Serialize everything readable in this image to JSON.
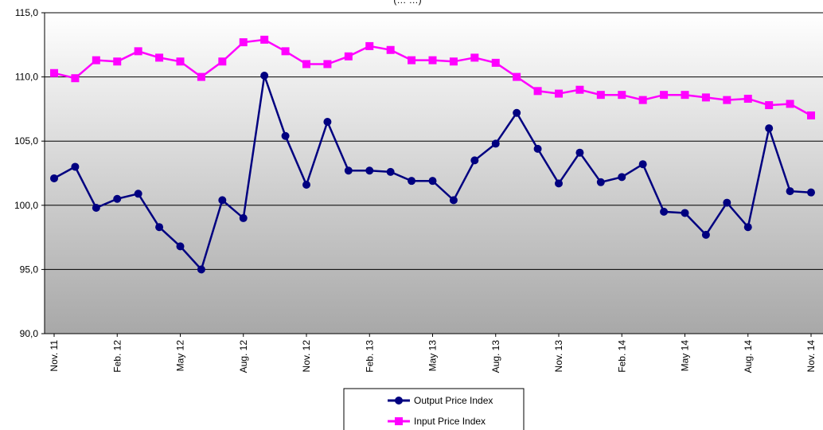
{
  "chart_data": {
    "type": "line",
    "title": "(… …)",
    "xlabel": "",
    "ylabel": "",
    "ylim": [
      90,
      115
    ],
    "yticks": [
      "90,0",
      "95,0",
      "100,0",
      "105,0",
      "110,0",
      "115,0"
    ],
    "ytick_values": [
      90,
      95,
      100,
      105,
      110,
      115
    ],
    "grid": true,
    "legend_position": "bottom-center",
    "categories": [
      "Nov. 11",
      "Dec. 11",
      "Jan. 12",
      "Feb. 12",
      "Mar. 12",
      "Apr. 12",
      "May 12",
      "Jun. 12",
      "Jul. 12",
      "Aug. 12",
      "Sep. 12",
      "Oct. 12",
      "Nov. 12",
      "Dec. 12",
      "Jan. 13",
      "Feb. 13",
      "Mar. 13",
      "Apr. 13",
      "May 13",
      "Jun. 13",
      "Jul. 13",
      "Aug. 13",
      "Sep. 13",
      "Oct. 13",
      "Nov. 13",
      "Dec. 13",
      "Jan. 14",
      "Feb. 14",
      "Mar. 14",
      "Apr. 14",
      "May 14",
      "Jun. 14",
      "Jul. 14",
      "Aug. 14",
      "Sep. 14",
      "Oct. 14",
      "Nov. 14"
    ],
    "tick_labels": [
      "Nov. 11",
      "",
      "",
      "Feb. 12",
      "",
      "",
      "May 12",
      "",
      "",
      "Aug. 12",
      "",
      "",
      "Nov. 12",
      "",
      "",
      "Feb. 13",
      "",
      "",
      "May 13",
      "",
      "",
      "Aug. 13",
      "",
      "",
      "Nov. 13",
      "",
      "",
      "Feb. 14",
      "",
      "",
      "May 14",
      "",
      "",
      "Aug. 14",
      "",
      "",
      "Nov. 14"
    ],
    "series": [
      {
        "name": "Output Price Index",
        "color": "#000080",
        "marker": "circle",
        "values": [
          102.1,
          103.0,
          99.8,
          100.5,
          100.9,
          98.3,
          96.8,
          95.0,
          100.4,
          99.0,
          110.1,
          105.4,
          101.6,
          106.5,
          102.7,
          102.7,
          102.6,
          101.9,
          101.9,
          100.4,
          103.5,
          104.8,
          107.2,
          104.4,
          101.7,
          104.1,
          101.8,
          102.2,
          103.2,
          99.5,
          99.4,
          97.7,
          100.2,
          98.3,
          106.0,
          101.1,
          101.0
        ]
      },
      {
        "name": "Input Price Index",
        "color": "#ff00ff",
        "marker": "square",
        "values": [
          110.3,
          109.9,
          111.3,
          111.2,
          112.0,
          111.5,
          111.2,
          110.0,
          111.2,
          112.7,
          112.9,
          112.0,
          111.0,
          111.0,
          111.6,
          112.4,
          112.1,
          111.3,
          111.3,
          111.2,
          111.5,
          111.1,
          110.0,
          108.9,
          108.7,
          109.0,
          108.6,
          108.6,
          108.2,
          108.6,
          108.6,
          108.4,
          108.2,
          108.3,
          107.8,
          107.9,
          107.0
        ]
      }
    ]
  }
}
